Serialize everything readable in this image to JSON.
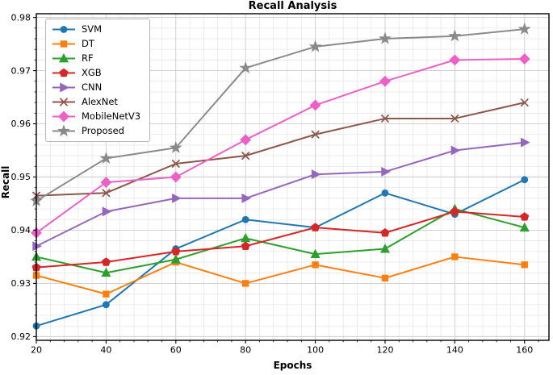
{
  "title": "Recall Analysis",
  "chart_data": {
    "type": "line",
    "title": "Recall Analysis",
    "xlabel": "Epochs",
    "ylabel": "Recall",
    "x": [
      20,
      40,
      60,
      80,
      100,
      120,
      140,
      160
    ],
    "x_ticks": [
      20,
      40,
      60,
      80,
      100,
      120,
      140,
      160
    ],
    "y_ticks": [
      0.92,
      0.93,
      0.94,
      0.95,
      0.96,
      0.97,
      0.98
    ],
    "xlim": [
      20,
      167
    ],
    "ylim": [
      0.92,
      0.98
    ],
    "grid": "major and minor, light gray, both axes",
    "legend_position": "upper left",
    "series": [
      {
        "name": "SVM",
        "color": "#1f77b4",
        "marker": "circle",
        "values": [
          0.922,
          0.926,
          0.9365,
          0.942,
          0.9405,
          0.947,
          0.943,
          0.9495
        ]
      },
      {
        "name": "DT",
        "color": "#ff7f0e",
        "marker": "square",
        "values": [
          0.9315,
          0.928,
          0.934,
          0.93,
          0.9335,
          0.931,
          0.935,
          0.9335
        ]
      },
      {
        "name": "RF",
        "color": "#2ca02c",
        "marker": "triangle-up",
        "values": [
          0.935,
          0.932,
          0.9345,
          0.9385,
          0.9355,
          0.9365,
          0.944,
          0.9405
        ]
      },
      {
        "name": "XGB",
        "color": "#d62728",
        "marker": "pentagon",
        "values": [
          0.933,
          0.934,
          0.936,
          0.937,
          0.9405,
          0.9395,
          0.9435,
          0.9425
        ]
      },
      {
        "name": "CNN",
        "color": "#9467bd",
        "marker": "triangle-right",
        "values": [
          0.937,
          0.9435,
          0.946,
          0.946,
          0.9505,
          0.951,
          0.955,
          0.9565
        ]
      },
      {
        "name": "AlexNet",
        "color": "#8c564b",
        "marker": "x",
        "values": [
          0.9465,
          0.947,
          0.9525,
          0.954,
          0.958,
          0.961,
          0.961,
          0.964
        ]
      },
      {
        "name": "MobileNetV3",
        "color": "#ee5fc7",
        "marker": "diamond",
        "values": [
          0.9395,
          0.949,
          0.95,
          0.957,
          0.9635,
          0.968,
          0.972,
          0.9722
        ]
      },
      {
        "name": "Proposed",
        "color": "#8a8a8a",
        "marker": "star",
        "values": [
          0.9455,
          0.9535,
          0.9555,
          0.9705,
          0.9745,
          0.976,
          0.9765,
          0.9778
        ]
      }
    ]
  }
}
